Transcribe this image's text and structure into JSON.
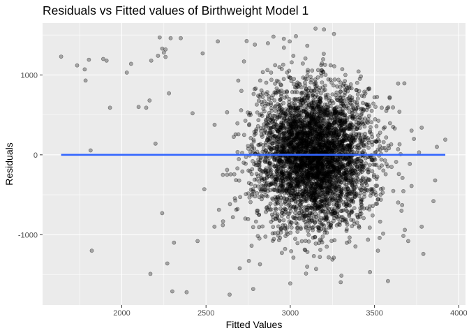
{
  "chart_data": {
    "type": "scatter",
    "title": "Residuals vs Fitted values of Birthweight Model 1",
    "xlabel": "Fitted Values",
    "ylabel": "Residuals",
    "xlim": [
      1530,
      4040
    ],
    "ylim": [
      -1880,
      1650
    ],
    "x_ticks": [
      2000,
      2500,
      3000,
      3500,
      4000
    ],
    "x_tick_labels": [
      "2000",
      "2500",
      "3000",
      "3500",
      "4000"
    ],
    "y_ticks": [
      -1000,
      0,
      1000
    ],
    "y_tick_labels": [
      "-1000",
      "0",
      "1000"
    ],
    "grid": true,
    "legend": "none",
    "colors": {
      "panel_background": "#ebebeb",
      "grid": "#ffffff",
      "points": "#000000",
      "point_opacity": 0.3,
      "reference_line": "#3366ff"
    },
    "reference_line": {
      "y": 0,
      "x_range": [
        1640,
        3920
      ]
    },
    "outlier_points": [
      [
        1640,
        1230
      ],
      [
        1735,
        1120
      ],
      [
        1780,
        1070
      ],
      [
        1785,
        930
      ],
      [
        1805,
        1190
      ],
      [
        1815,
        55
      ],
      [
        1822,
        -1200
      ],
      [
        1890,
        1200
      ],
      [
        1910,
        1180
      ],
      [
        1930,
        590
      ],
      [
        2030,
        1030
      ],
      [
        2055,
        1140
      ],
      [
        2100,
        600
      ],
      [
        2145,
        590
      ],
      [
        2165,
        680
      ],
      [
        2175,
        1180
      ],
      [
        2200,
        140
      ],
      [
        2170,
        -1490
      ],
      [
        2215,
        1240
      ],
      [
        2225,
        1470
      ],
      [
        2240,
        1330
      ],
      [
        2250,
        1280
      ],
      [
        2260,
        1225
      ],
      [
        2260,
        1320
      ],
      [
        2290,
        1460
      ],
      [
        2280,
        770
      ],
      [
        2240,
        -730
      ],
      [
        2270,
        -1360
      ],
      [
        2300,
        -1710
      ],
      [
        2310,
        -1100
      ],
      [
        2350,
        1460
      ],
      [
        2385,
        -1720
      ],
      [
        2480,
        1270
      ],
      [
        2490,
        -430
      ],
      [
        2550,
        -900
      ],
      [
        2570,
        1420
      ],
      [
        2640,
        -1750
      ],
      [
        2700,
        -1420
      ],
      [
        2780,
        -1680
      ],
      [
        2790,
        1380
      ],
      [
        2900,
        1480
      ],
      [
        3000,
        -1610
      ],
      [
        3150,
        1580
      ],
      [
        3200,
        1570
      ],
      [
        3250,
        -1310
      ],
      [
        3440,
        790
      ],
      [
        3500,
        720
      ],
      [
        3520,
        -1200
      ],
      [
        3580,
        -1580
      ],
      [
        3610,
        350
      ],
      [
        3620,
        330
      ],
      [
        3640,
        70
      ],
      [
        3660,
        -700
      ],
      [
        3680,
        -940
      ],
      [
        3700,
        -1080
      ],
      [
        3720,
        -390
      ],
      [
        3780,
        -900
      ],
      [
        3790,
        -1240
      ],
      [
        3850,
        -580
      ],
      [
        3860,
        -320
      ],
      [
        3870,
        100
      ],
      [
        3920,
        190
      ],
      [
        3780,
        340
      ],
      [
        3530,
        -1040
      ],
      [
        3570,
        550
      ],
      [
        2420,
        520
      ],
      [
        2450,
        -1080
      ],
      [
        2600,
        -880
      ],
      [
        2820,
        -1370
      ],
      [
        3100,
        -1400
      ]
    ],
    "bulk_distribution": {
      "n": 4300,
      "x_mean": 3140,
      "x_sd": 170,
      "residual_sd": 440,
      "x_min": 2380,
      "x_max": 3820,
      "y_min": -1700,
      "y_max": 1520
    }
  }
}
